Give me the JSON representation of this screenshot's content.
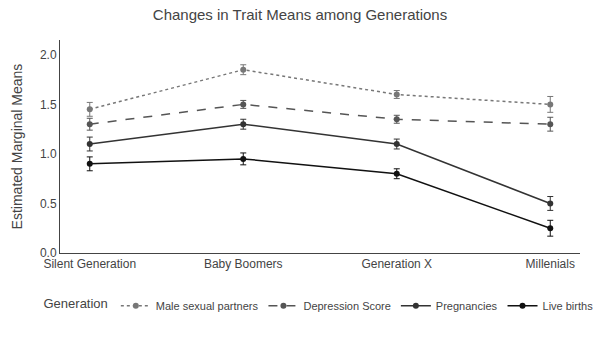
{
  "chart_data": {
    "type": "line",
    "title": "Changes in Trait Means among Generations",
    "y_label": "Estimated Marginal Means",
    "legend_title": "Generation",
    "categories": [
      "Silent Generation",
      "Baby Boomers",
      "Generation X",
      "Millenials"
    ],
    "series": [
      {
        "name": "Male sexual partners",
        "color": "#777777",
        "line_style": "dotted",
        "marker": "circle",
        "values": [
          1.45,
          1.85,
          1.6,
          1.5
        ],
        "error": [
          0.07,
          0.05,
          0.04,
          0.08
        ]
      },
      {
        "name": "Depression Score",
        "color": "#555555",
        "line_style": "dashed",
        "marker": "circle",
        "values": [
          1.3,
          1.5,
          1.35,
          1.3
        ],
        "error": [
          0.06,
          0.04,
          0.04,
          0.07
        ]
      },
      {
        "name": "Pregnancies",
        "color": "#333333",
        "line_style": "solid",
        "marker": "circle",
        "values": [
          1.1,
          1.3,
          1.1,
          0.5
        ],
        "error": [
          0.07,
          0.05,
          0.05,
          0.07
        ]
      },
      {
        "name": "Live births",
        "color": "#111111",
        "line_style": "solid",
        "marker": "circle",
        "values": [
          0.9,
          0.95,
          0.8,
          0.25
        ],
        "error": [
          0.07,
          0.06,
          0.05,
          0.08
        ]
      }
    ],
    "ylim": [
      0.0,
      2.15
    ],
    "yticks": [
      {
        "value": 0,
        "label": "0.0"
      },
      {
        "value": 0.5,
        "label": "0.5"
      },
      {
        "value": 1,
        "label": "1.0"
      },
      {
        "value": 1.5,
        "label": "1.5"
      },
      {
        "value": 2,
        "label": "2.0"
      }
    ],
    "grid": false,
    "legend": "bottom"
  }
}
